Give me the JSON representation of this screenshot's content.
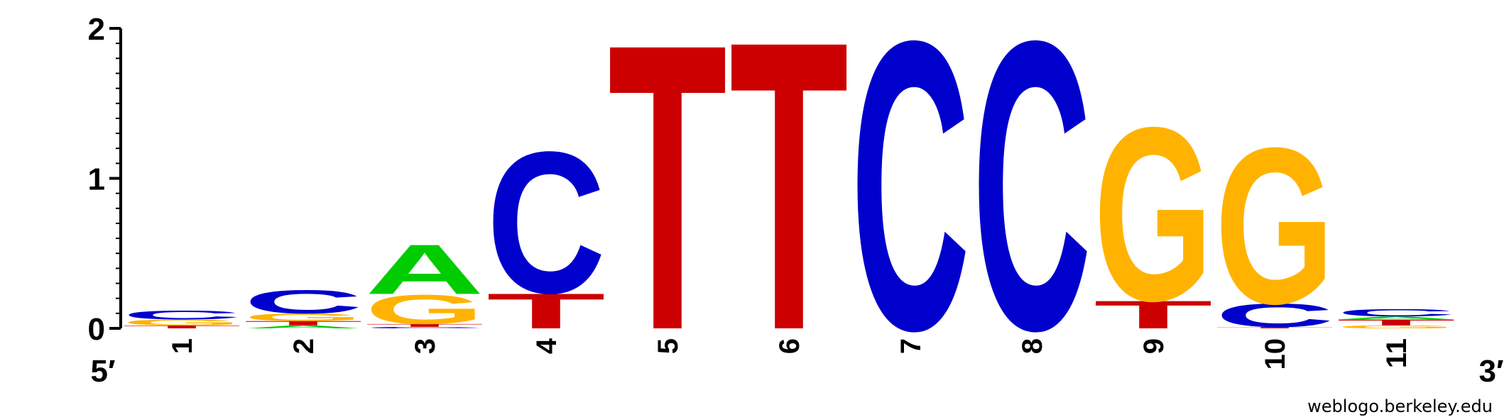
{
  "chart_data": {
    "type": "sequence-logo",
    "ylim": [
      0,
      2
    ],
    "y_ticks": [
      "0",
      "1",
      "2"
    ],
    "positions": [
      "1",
      "2",
      "3",
      "4",
      "5",
      "6",
      "7",
      "8",
      "9",
      "10",
      "11"
    ],
    "end_labels": {
      "left": "5′",
      "right": "3′"
    },
    "colors": {
      "A": "#00cc00",
      "C": "#0000cc",
      "G": "#ffb300",
      "T": "#cc0000"
    },
    "stacks": [
      [
        {
          "letter": "T",
          "height": 0.02
        },
        {
          "letter": "G",
          "height": 0.04
        },
        {
          "letter": "C",
          "height": 0.06
        }
      ],
      [
        {
          "letter": "A",
          "height": 0.02
        },
        {
          "letter": "T",
          "height": 0.03
        },
        {
          "letter": "G",
          "height": 0.05
        },
        {
          "letter": "C",
          "height": 0.16
        }
      ],
      [
        {
          "letter": "C",
          "height": 0.01
        },
        {
          "letter": "T",
          "height": 0.02
        },
        {
          "letter": "G",
          "height": 0.2
        },
        {
          "letter": "A",
          "height": 0.34
        }
      ],
      [
        {
          "letter": "T",
          "height": 0.24
        },
        {
          "letter": "C",
          "height": 0.97
        }
      ],
      [
        {
          "letter": "T",
          "height": 1.96
        }
      ],
      [
        {
          "letter": "T",
          "height": 1.98
        }
      ],
      [
        {
          "letter": "C",
          "height": 1.98
        }
      ],
      [
        {
          "letter": "C",
          "height": 1.98
        }
      ],
      [
        {
          "letter": "T",
          "height": 0.19
        },
        {
          "letter": "G",
          "height": 1.19
        }
      ],
      [
        {
          "letter": "T",
          "height": 0.01
        },
        {
          "letter": "C",
          "height": 0.16
        },
        {
          "letter": "G",
          "height": 1.07
        }
      ],
      [
        {
          "letter": "G",
          "height": 0.02
        },
        {
          "letter": "T",
          "height": 0.04
        },
        {
          "letter": "A",
          "height": 0.02
        },
        {
          "letter": "C",
          "height": 0.05
        }
      ]
    ]
  },
  "credit": "weblogo.berkeley.edu"
}
